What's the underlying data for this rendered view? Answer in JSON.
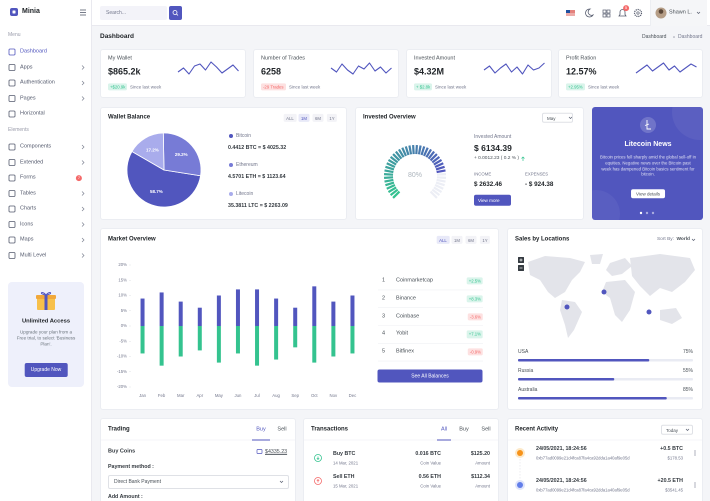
{
  "sidebar": {
    "brand": "Minia",
    "sections": [
      {
        "title": "Menu",
        "items": [
          {
            "label": "Dashboard"
          },
          {
            "label": "Apps"
          },
          {
            "label": "Authentication"
          },
          {
            "label": "Pages"
          },
          {
            "label": "Horizontal"
          }
        ]
      },
      {
        "title": "Elements",
        "items": [
          {
            "label": "Components"
          },
          {
            "label": "Extended"
          },
          {
            "label": "Forms",
            "badge": "7"
          },
          {
            "label": "Tables"
          },
          {
            "label": "Charts"
          },
          {
            "label": "Icons"
          },
          {
            "label": "Maps"
          },
          {
            "label": "Multi Level"
          }
        ]
      }
    ]
  },
  "promo": {
    "title": "Unlimited Access",
    "text": "Upgrade your plan from a Free trial, to select 'Business Plan'.",
    "button": "Upgrade Now"
  },
  "topbar": {
    "search_placeholder": "Search...",
    "notifications": "5",
    "user": "Shawn L."
  },
  "page": {
    "title": "Dashboard",
    "breadcrumb": [
      "Dashboard",
      "Dashboard"
    ]
  },
  "stats": [
    {
      "label": "My Wallet",
      "value": "$865.2k",
      "change": "+$20.9k",
      "note": "Since last week"
    },
    {
      "label": "Number of Trades",
      "value": "6258",
      "change": "-29 Trades",
      "note": "Since last week"
    },
    {
      "label": "Invested Amount",
      "value": "$4.32M",
      "change": "+ $2.8k",
      "note": "Since last week"
    },
    {
      "label": "Profit Ration",
      "value": "12.57%",
      "change": "+2.95%",
      "note": "Since last week"
    }
  ],
  "wallet": {
    "title": "Wallet Balance",
    "tabs": [
      "ALL",
      "1M",
      "6M",
      "1Y"
    ],
    "pie": {
      "values": [
        58.7,
        29.2,
        17.2
      ],
      "value_labels": [
        "58.7%",
        "29.2%",
        "17.2%"
      ],
      "colors": [
        "#5156be",
        "#777bd6",
        "#a9acec"
      ]
    },
    "coins": [
      {
        "name": "Bitcoin",
        "detail": "0.4412 BTC = $ 4025.32"
      },
      {
        "name": "Ethereum",
        "detail": "4.5701 ETH = $ 1123.64"
      },
      {
        "name": "Litecoin",
        "detail": "35.3811 LTC = $ 2263.09"
      }
    ]
  },
  "invested": {
    "title": "Invested Overview",
    "period": "May",
    "gauge": {
      "value": 80,
      "label": "80%"
    },
    "amount_label": "Invested Amount",
    "amount": "$ 6134.39",
    "change": "+ 0.0012.23 ( 0.2 % )",
    "income_label": "INCOME",
    "income": "$ 2632.46",
    "expenses_label": "EXPENSES",
    "expenses": "- $ 924.38",
    "button": "View more"
  },
  "news": {
    "title": "Litecoin News",
    "text": "Bitcoin prices fell sharply amid the global sell-off in equities. Negative news over the Bitcoin past week has dampened Bitcoin basics sentiment for bitcoin.",
    "button": "View details"
  },
  "market": {
    "title": "Market Overview",
    "tabs": [
      "ALL",
      "1M",
      "6M",
      "1Y"
    ],
    "chart": {
      "type": "bar",
      "categories": [
        "Jan",
        "Feb",
        "Mar",
        "Apr",
        "May",
        "Jun",
        "Jul",
        "Aug",
        "Sep",
        "Oct",
        "Nov",
        "Dec"
      ],
      "series": [
        {
          "color": "#5156be",
          "values": [
            9,
            11,
            8,
            6,
            10,
            12,
            12,
            9,
            6,
            13,
            8,
            10
          ]
        },
        {
          "color": "#34c38f",
          "values": [
            -9,
            -13,
            -10,
            -8,
            -12,
            -9,
            -13,
            -11,
            -7,
            -12,
            -10,
            -9
          ]
        }
      ],
      "ylim": [
        -20,
        20
      ],
      "yticks": [
        {
          "value": 20,
          "label": "20%"
        },
        {
          "value": 15,
          "label": "15%"
        },
        {
          "value": 10,
          "label": "10%"
        },
        {
          "value": 5,
          "label": "5%"
        },
        {
          "value": 0,
          "label": "0%"
        },
        {
          "value": -5,
          "label": "-5%"
        },
        {
          "value": -10,
          "label": "-10%"
        },
        {
          "value": -15,
          "label": "-15%"
        },
        {
          "value": -20,
          "label": "-20%"
        }
      ]
    },
    "exchanges": [
      {
        "rank": 1,
        "name": "Coinmarketcap",
        "change": "+2.5%"
      },
      {
        "rank": 2,
        "name": "Binance",
        "change": "+8.3%"
      },
      {
        "rank": 3,
        "name": "Coinbase",
        "change": "-3.6%"
      },
      {
        "rank": 4,
        "name": "Yobit",
        "change": "+7.1%"
      },
      {
        "rank": 5,
        "name": "Bitfinex",
        "change": "-0.9%"
      }
    ],
    "button": "See All Balances"
  },
  "locations": {
    "title": "Sales by Locations",
    "sort_label": "Sort By:",
    "sort_value": "World",
    "countries": [
      {
        "name": "USA",
        "value": 75,
        "label": "75%"
      },
      {
        "name": "Russia",
        "value": 55,
        "label": "55%"
      },
      {
        "name": "Australia",
        "value": 85,
        "label": "85%"
      }
    ]
  },
  "trading": {
    "title": "Trading",
    "tabs": [
      "Buy",
      "Sell"
    ],
    "buy_coins": "Buy Coins",
    "wallet": "$4335.23",
    "payment_label": "Payment method :",
    "payment": "Direct Bank Payment",
    "amount_label": "Add Amount :"
  },
  "transactions": {
    "title": "Transactions",
    "tabs": [
      "All",
      "Buy",
      "Sell"
    ],
    "rows": [
      {
        "title": "Buy BTC",
        "date": "14 Mar, 2021",
        "coin": "0.016 BTC",
        "coin_label": "Coin Value",
        "amount": "$125.20",
        "amount_label": "Amount"
      },
      {
        "title": "Sell ETH",
        "date": "15 Mar, 2021",
        "coin": "0.56 ETH",
        "coin_label": "Coin Value",
        "amount": "$112.34",
        "amount_label": "Amount"
      }
    ]
  },
  "activity": {
    "title": "Recent Activity",
    "period": "Today",
    "rows": [
      {
        "date": "24/05/2021, 18:24:56",
        "hash": "0xb77ad0099e21d4fca87fa4ca92dda1a40af9e05d",
        "amount": "+0.5 BTC",
        "value": "$178.53"
      },
      {
        "date": "24/05/2021, 18:24:56",
        "hash": "0xb77ad0099e21d4fca87fa4ca92dda1a40af9e05d",
        "amount": "+20.5 ETH",
        "value": "$3541.45"
      }
    ]
  }
}
